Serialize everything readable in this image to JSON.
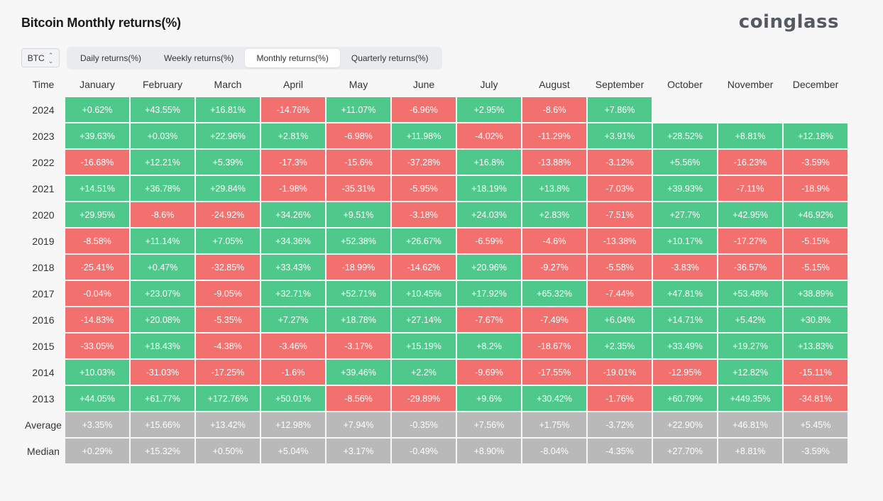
{
  "page": {
    "title": "Bitcoin Monthly returns(%)",
    "logo": "coinglass"
  },
  "asset_select": {
    "value": "BTC"
  },
  "tabs": [
    {
      "label": "Daily returns(%)",
      "active": false
    },
    {
      "label": "Weekly returns(%)",
      "active": false
    },
    {
      "label": "Monthly returns(%)",
      "active": true
    },
    {
      "label": "Quarterly returns(%)",
      "active": false
    }
  ],
  "colors": {
    "positive": "#4ec98b",
    "negative": "#f2716f",
    "summary": "#b9b9b9"
  },
  "table": {
    "time_header": "Time",
    "months": [
      "January",
      "February",
      "March",
      "April",
      "May",
      "June",
      "July",
      "August",
      "September",
      "October",
      "November",
      "December"
    ],
    "rows": [
      {
        "year": "2024",
        "values": [
          "+0.62%",
          "+43.55%",
          "+16.81%",
          "-14.76%",
          "+11.07%",
          "-6.96%",
          "+2.95%",
          "-8.6%",
          "+7.86%",
          "",
          "",
          ""
        ]
      },
      {
        "year": "2023",
        "values": [
          "+39.63%",
          "+0.03%",
          "+22.96%",
          "+2.81%",
          "-6.98%",
          "+11.98%",
          "-4.02%",
          "-11.29%",
          "+3.91%",
          "+28.52%",
          "+8.81%",
          "+12.18%"
        ]
      },
      {
        "year": "2022",
        "values": [
          "-16.68%",
          "+12.21%",
          "+5.39%",
          "-17.3%",
          "-15.6%",
          "-37.28%",
          "+16.8%",
          "-13.88%",
          "-3.12%",
          "+5.56%",
          "-16.23%",
          "-3.59%"
        ]
      },
      {
        "year": "2021",
        "values": [
          "+14.51%",
          "+36.78%",
          "+29.84%",
          "-1.98%",
          "-35.31%",
          "-5.95%",
          "+18.19%",
          "+13.8%",
          "-7.03%",
          "+39.93%",
          "-7.11%",
          "-18.9%"
        ]
      },
      {
        "year": "2020",
        "values": [
          "+29.95%",
          "-8.6%",
          "-24.92%",
          "+34.26%",
          "+9.51%",
          "-3.18%",
          "+24.03%",
          "+2.83%",
          "-7.51%",
          "+27.7%",
          "+42.95%",
          "+46.92%"
        ]
      },
      {
        "year": "2019",
        "values": [
          "-8.58%",
          "+11.14%",
          "+7.05%",
          "+34.36%",
          "+52.38%",
          "+26.67%",
          "-6.59%",
          "-4.6%",
          "-13.38%",
          "+10.17%",
          "-17.27%",
          "-5.15%"
        ]
      },
      {
        "year": "2018",
        "values": [
          "-25.41%",
          "+0.47%",
          "-32.85%",
          "+33.43%",
          "-18.99%",
          "-14.62%",
          "+20.96%",
          "-9.27%",
          "-5.58%",
          "-3.83%",
          "-36.57%",
          "-5.15%"
        ]
      },
      {
        "year": "2017",
        "values": [
          "-0.04%",
          "+23.07%",
          "-9.05%",
          "+32.71%",
          "+52.71%",
          "+10.45%",
          "+17.92%",
          "+65.32%",
          "-7.44%",
          "+47.81%",
          "+53.48%",
          "+38.89%"
        ]
      },
      {
        "year": "2016",
        "values": [
          "-14.83%",
          "+20.08%",
          "-5.35%",
          "+7.27%",
          "+18.78%",
          "+27.14%",
          "-7.67%",
          "-7.49%",
          "+6.04%",
          "+14.71%",
          "+5.42%",
          "+30.8%"
        ]
      },
      {
        "year": "2015",
        "values": [
          "-33.05%",
          "+18.43%",
          "-4.38%",
          "-3.46%",
          "-3.17%",
          "+15.19%",
          "+8.2%",
          "-18.67%",
          "+2.35%",
          "+33.49%",
          "+19.27%",
          "+13.83%"
        ]
      },
      {
        "year": "2014",
        "values": [
          "+10.03%",
          "-31.03%",
          "-17.25%",
          "-1.6%",
          "+39.46%",
          "+2.2%",
          "-9.69%",
          "-17.55%",
          "-19.01%",
          "-12.95%",
          "+12.82%",
          "-15.11%"
        ]
      },
      {
        "year": "2013",
        "values": [
          "+44.05%",
          "+61.77%",
          "+172.76%",
          "+50.01%",
          "-8.56%",
          "-29.89%",
          "+9.6%",
          "+30.42%",
          "-1.76%",
          "+60.79%",
          "+449.35%",
          "-34.81%"
        ]
      }
    ],
    "summary": [
      {
        "label": "Average",
        "values": [
          "+3.35%",
          "+15.66%",
          "+13.42%",
          "+12.98%",
          "+7.94%",
          "-0.35%",
          "+7.56%",
          "+1.75%",
          "-3.72%",
          "+22.90%",
          "+46.81%",
          "+5.45%"
        ]
      },
      {
        "label": "Median",
        "values": [
          "+0.29%",
          "+15.32%",
          "+0.50%",
          "+5.04%",
          "+3.17%",
          "-0.49%",
          "+8.90%",
          "-8.04%",
          "-4.35%",
          "+27.70%",
          "+8.81%",
          "-3.59%"
        ]
      }
    ]
  }
}
